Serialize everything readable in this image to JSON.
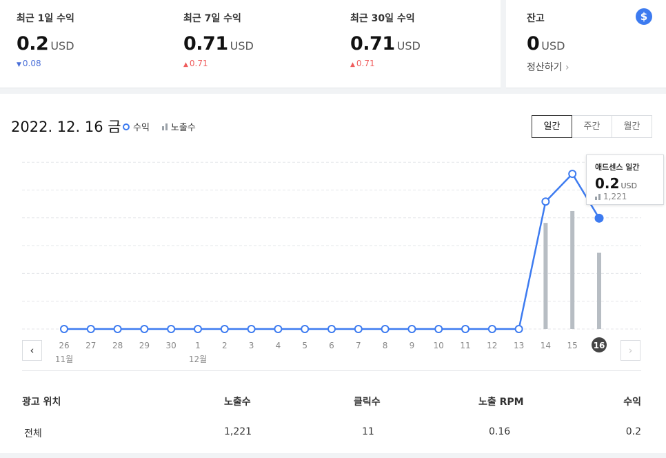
{
  "stats": [
    {
      "label": "최근 1일 수익",
      "value": "0.2",
      "unit": "USD",
      "direction": "down",
      "change": "0.08"
    },
    {
      "label": "최근 7일 수익",
      "value": "0.71",
      "unit": "USD",
      "direction": "up",
      "change": "0.71"
    },
    {
      "label": "최근 30일 수익",
      "value": "0.71",
      "unit": "USD",
      "direction": "up",
      "change": "0.71"
    }
  ],
  "balance": {
    "label": "잔고",
    "value": "0",
    "unit": "USD",
    "settle_label": "정산하기",
    "icon": "dollar-icon"
  },
  "chart_header": {
    "date": "2022. 12. 16 금",
    "legend_revenue": "수익",
    "legend_impressions": "노출수"
  },
  "tabs": [
    {
      "label": "일간",
      "active": true
    },
    {
      "label": "주간",
      "active": false
    },
    {
      "label": "월간",
      "active": false
    }
  ],
  "tooltip": {
    "title": "애드센스 일간",
    "value": "0.2",
    "unit": "USD",
    "impressions": "1,221"
  },
  "chart_data": {
    "type": "line",
    "categories": [
      "26",
      "27",
      "28",
      "29",
      "30",
      "1",
      "2",
      "3",
      "4",
      "5",
      "6",
      "7",
      "8",
      "9",
      "10",
      "11",
      "12",
      "13",
      "14",
      "15",
      "16"
    ],
    "month_labels": [
      {
        "index": 0,
        "label": "11월"
      },
      {
        "index": 5,
        "label": "12월"
      }
    ],
    "selected_index": 20,
    "series": [
      {
        "name": "수익",
        "type": "line",
        "color": "#3d7bf0",
        "values": [
          0,
          0,
          0,
          0,
          0,
          0,
          0,
          0,
          0,
          0,
          0,
          0,
          0,
          0,
          0,
          0,
          0,
          0,
          0.23,
          0.28,
          0.2
        ]
      },
      {
        "name": "노출수",
        "type": "bar",
        "color": "#b7bdc3",
        "values": [
          0,
          0,
          0,
          0,
          0,
          0,
          0,
          0,
          0,
          0,
          0,
          0,
          0,
          0,
          0,
          0,
          0,
          0,
          1700,
          1890,
          1221
        ]
      }
    ],
    "grid": true
  },
  "table": {
    "headers": [
      "광고 위치",
      "노출수",
      "클릭수",
      "노출 RPM",
      "수익"
    ],
    "rows": [
      [
        "전체",
        "1,221",
        "11",
        "0.16",
        "0.2"
      ]
    ]
  }
}
